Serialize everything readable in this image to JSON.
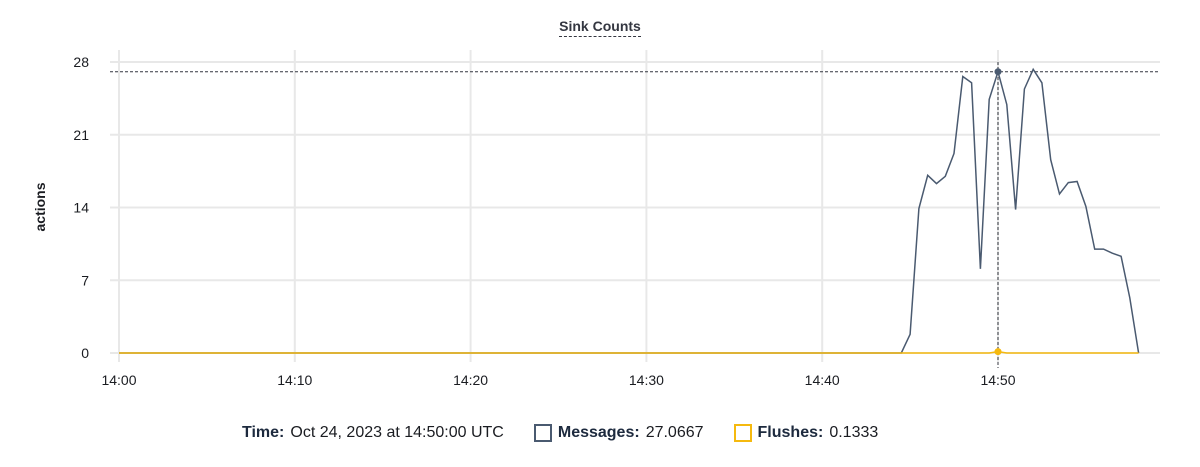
{
  "chart_data": {
    "type": "line",
    "title": "Sink Counts",
    "xlabel": "",
    "ylabel": "actions",
    "ylim": [
      0,
      28
    ],
    "y_ticks": [
      "0",
      "7",
      "14",
      "21",
      "28"
    ],
    "x_ticks": [
      "14:00",
      "14:10",
      "14:20",
      "14:30",
      "14:40",
      "14:50"
    ],
    "grid": true,
    "x": [
      "14:00:00",
      "14:44:30",
      "14:45:00",
      "14:45:30",
      "14:46:00",
      "14:46:30",
      "14:47:00",
      "14:47:30",
      "14:48:00",
      "14:48:30",
      "14:49:00",
      "14:49:30",
      "14:50:00",
      "14:50:30",
      "14:51:00",
      "14:51:30",
      "14:52:00",
      "14:52:30",
      "14:53:00",
      "14:53:30",
      "14:54:00",
      "14:54:30",
      "14:55:00",
      "14:55:30",
      "14:56:00",
      "14:56:30",
      "14:57:00",
      "14:57:30",
      "14:58:00"
    ],
    "series": [
      {
        "name": "Messages",
        "color": "#4a5a70",
        "values": [
          0,
          0,
          1.8,
          13.9,
          17.1,
          16.3,
          17.0,
          19.2,
          26.6,
          26.0,
          8.1,
          24.4,
          27.0667,
          23.9,
          13.8,
          25.4,
          27.3,
          26.0,
          18.6,
          15.3,
          16.4,
          16.5,
          14.1,
          10.0,
          10.0,
          9.6,
          9.3,
          5.3,
          0
        ]
      },
      {
        "name": "Flushes",
        "color": "#f5b90f",
        "values": [
          0,
          0,
          0,
          0,
          0,
          0,
          0,
          0,
          0,
          0,
          0,
          0,
          0.1333,
          0,
          0,
          0,
          0,
          0,
          0,
          0,
          0,
          0,
          0,
          0,
          0,
          0,
          0,
          0,
          0
        ]
      }
    ],
    "crosshair": "14:50:00"
  },
  "tooltip": {
    "time_label": "Time:",
    "time_value": "Oct 24, 2023 at 14:50:00 UTC",
    "messages_label": "Messages:",
    "messages_value": "27.0667",
    "flushes_label": "Flushes:",
    "flushes_value": "0.1333"
  }
}
